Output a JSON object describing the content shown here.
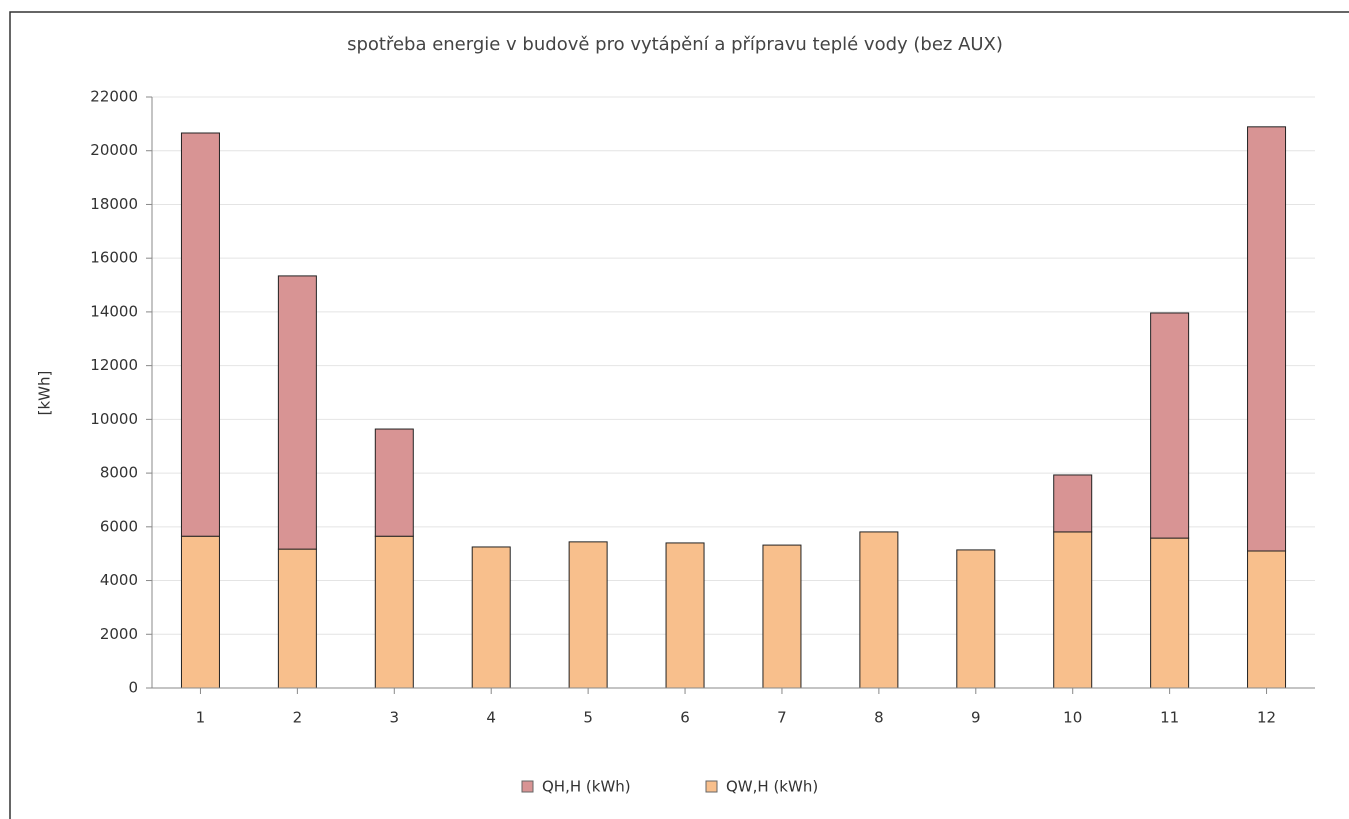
{
  "chart_data": {
    "type": "bar",
    "stacked": true,
    "title": "spotřeba energie v budově pro vytápění a přípravu teplé vody (bez AUX)",
    "y_label": "[kWh]",
    "categories": [
      "1",
      "2",
      "3",
      "4",
      "5",
      "6",
      "7",
      "8",
      "9",
      "10",
      "11",
      "12"
    ],
    "series": [
      {
        "name": "QH,H (kWh)",
        "color": "#d89494",
        "values": [
          15010,
          10170,
          3990,
          0,
          0,
          0,
          0,
          0,
          0,
          2120,
          8380,
          15790
        ]
      },
      {
        "name": "QW,H (kWh)",
        "color": "#f8bf8c",
        "values": [
          5650,
          5170,
          5650,
          5250,
          5440,
          5400,
          5320,
          5810,
          5140,
          5810,
          5580,
          5100
        ]
      }
    ],
    "ylim": [
      0,
      22000
    ],
    "yticks": [
      0,
      2000,
      4000,
      6000,
      8000,
      10000,
      12000,
      14000,
      16000,
      18000,
      20000,
      22000
    ],
    "grid": true,
    "legend": "bottom"
  }
}
